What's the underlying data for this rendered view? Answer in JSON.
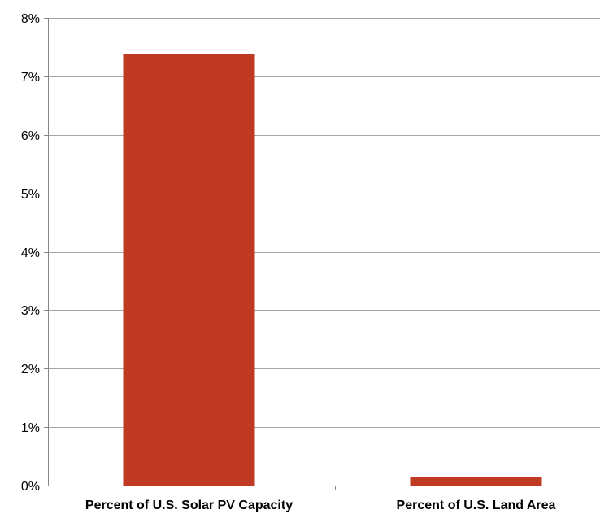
{
  "chart_data": {
    "type": "bar",
    "categories": [
      "Percent of U.S. Solar PV Capacity",
      "Percent  of U.S. Land Area"
    ],
    "values": [
      7.38,
      0.14
    ],
    "ylim": [
      0,
      8
    ],
    "yticks": [
      0,
      1,
      2,
      3,
      4,
      5,
      6,
      7,
      8
    ],
    "ytick_labels": [
      "0%",
      "1%",
      "2%",
      "3%",
      "4%",
      "5%",
      "6%",
      "7%",
      "8%"
    ],
    "title": "",
    "xlabel": "",
    "ylabel": "",
    "grid": true,
    "legend": "none",
    "colors": {
      "bar": "#c03a23",
      "grid": "#a6a6a6",
      "axis": "#868686"
    }
  }
}
